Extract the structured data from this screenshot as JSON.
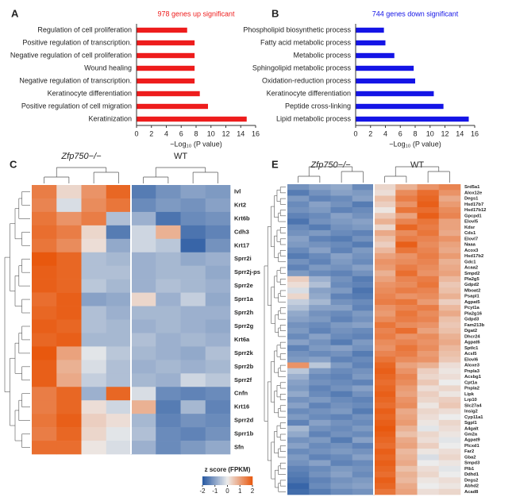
{
  "chart_data": [
    {
      "type": "bar",
      "panel": "A",
      "title": "978 genes up  significant",
      "color": "#ee1c1c",
      "categories": [
        "Regulation of cell proliferation",
        "Positive regulation of transcription.",
        "Negative regulation of cell proliferation",
        "Wound healing",
        "Negative regulation of transcription.",
        "Keratinocyte differentiation",
        "Positive regulation of cell migration",
        "Keratinization"
      ],
      "values": [
        6.8,
        7.8,
        7.8,
        7.8,
        7.8,
        8.5,
        9.6,
        14.8
      ],
      "xlabel": "−Log₁₀ (P value)",
      "xlim": [
        0,
        16
      ],
      "xticks": [
        0,
        2,
        4,
        6,
        8,
        10,
        12,
        14,
        16
      ]
    },
    {
      "type": "bar",
      "panel": "B",
      "title": "744 genes down significant",
      "color": "#1414e6",
      "categories": [
        "Phospholipid biosynthetic process",
        "Fatty acid metabolic process",
        "Metabolic process",
        "Sphingolipid metabolic process",
        "Oxidation-reduction process",
        "Keratinocyte differentiation",
        "Peptide cross-linking",
        "Lipid metabolic process"
      ],
      "values": [
        3.8,
        4.0,
        5.2,
        7.8,
        8.0,
        10.5,
        11.8,
        15.2
      ],
      "xlabel": "−Log₁₀ (P value)",
      "xlim": [
        0,
        16
      ],
      "xticks": [
        0,
        2,
        4,
        6,
        8,
        10,
        12,
        14,
        16
      ]
    },
    {
      "type": "heatmap",
      "panel": "C",
      "groups": [
        "Zfp750−/−",
        "WT"
      ],
      "rows": [
        "Ivl",
        "Krt2",
        "Krt6b",
        "Cdh3",
        "Krt17",
        "Sprr2i",
        "Sprr2j-ps",
        "Sprr2e",
        "Sprr1a",
        "Sprr2h",
        "Sprr2g",
        "Krt6a",
        "Sprr2k",
        "Sprr2b",
        "Sprr2f",
        "Cnfn",
        "Krt16",
        "Sprr2d",
        "Sprr1b",
        "Sfn"
      ],
      "values": [
        [
          1.5,
          0.3,
          1.2,
          1.8,
          -1.5,
          -1.2,
          -1.0,
          -1.1
        ],
        [
          1.4,
          -0.2,
          1.3,
          1.6,
          -1.3,
          -1.1,
          -1.2,
          -1.0
        ],
        [
          1.6,
          1.2,
          1.5,
          -0.6,
          -0.8,
          -1.6,
          -1.3,
          -1.2
        ],
        [
          1.7,
          1.5,
          0.3,
          -1.5,
          -0.3,
          0.8,
          -1.6,
          -1.4
        ],
        [
          1.6,
          1.3,
          0.2,
          -0.9,
          -0.3,
          -0.5,
          -1.8,
          -1.2
        ],
        [
          2.0,
          1.8,
          -0.6,
          -0.7,
          -0.8,
          -0.7,
          -0.9,
          -0.8
        ],
        [
          1.9,
          1.8,
          -0.6,
          -0.6,
          -0.8,
          -0.7,
          -0.7,
          -0.9
        ],
        [
          1.9,
          1.8,
          -0.5,
          -0.7,
          -0.8,
          -0.6,
          -0.7,
          -0.8
        ],
        [
          1.7,
          1.9,
          -1.0,
          -0.9,
          0.3,
          -0.8,
          -0.4,
          -0.9
        ],
        [
          1.8,
          1.9,
          -0.6,
          -0.8,
          -0.7,
          -0.7,
          -0.8,
          -0.8
        ],
        [
          1.9,
          1.8,
          -0.6,
          -0.7,
          -0.8,
          -0.7,
          -0.8,
          -0.9
        ],
        [
          1.8,
          1.9,
          -0.7,
          -0.7,
          -0.6,
          -0.8,
          -0.7,
          -0.8
        ],
        [
          2.0,
          1.0,
          -0.1,
          -0.5,
          -0.7,
          -0.8,
          -0.9,
          -0.6
        ],
        [
          1.9,
          0.8,
          -0.2,
          -0.6,
          -0.8,
          -0.7,
          -0.8,
          -0.7
        ],
        [
          1.9,
          0.9,
          -0.4,
          -0.6,
          -0.7,
          -0.8,
          -0.3,
          -0.5
        ],
        [
          1.5,
          1.8,
          -0.8,
          1.8,
          -0.2,
          -1.3,
          -1.4,
          -1.3
        ],
        [
          1.5,
          1.8,
          0.2,
          -0.3,
          0.8,
          -1.5,
          -0.7,
          -1.4
        ],
        [
          1.6,
          1.9,
          0.4,
          0.2,
          -0.7,
          -1.4,
          -1.2,
          -1.3
        ],
        [
          1.5,
          1.8,
          0.3,
          -0.1,
          -0.6,
          -1.3,
          -1.4,
          -1.2
        ],
        [
          1.7,
          1.7,
          0.1,
          -0.2,
          -0.8,
          -1.3,
          -1.1,
          -0.9
        ]
      ],
      "zlim": [
        -2,
        2
      ],
      "colorbar_label": "z score (FPKM)",
      "zticks": [
        -2,
        -1,
        0,
        1,
        2
      ]
    },
    {
      "type": "heatmap",
      "panel": "E",
      "groups": [
        "Zfp750−/−",
        "WT"
      ],
      "rows": [
        "Srd5a1",
        "Alox12e",
        "Degs1",
        "Hsd17b7",
        "Hsd17b12",
        "Gpcpd1",
        "Elovl5",
        "Kdsr",
        "Cds1",
        "Elovl7",
        "Naaa",
        "Acox3",
        "Hsd17b2",
        "Gdc1",
        "Acaa2",
        "Smpd2",
        "Pla2g5",
        "Gdpd2",
        "Mboat2",
        "Psapl1",
        "Agpat5",
        "Pcyt1a",
        "Pla2g16",
        "Gdpd3",
        "Fam213b",
        "Dgat2",
        "Dhcr24",
        "Agpat6",
        "Sptlc1",
        "Acsl5",
        "Elovl6",
        "Aloxe3",
        "Pnpla3",
        "Acsbg1",
        "Cpt1a",
        "Pnpla2",
        "Lipk",
        "Lrp10",
        "Slc27a4",
        "Insig2",
        "Cyp11a1",
        "Sgpl1",
        "A4galt",
        "Gm2a",
        "Agpat9",
        "Plcxd1",
        "Far2",
        "Gba2",
        "Smpd3",
        "Plb1",
        "Ddhd1",
        "Degs2",
        "Abhd2",
        "Acad8"
      ],
      "values": [
        [
          -1.2,
          -1.0,
          -0.9,
          -1.3,
          0.3,
          0.8,
          1.2,
          1.4
        ],
        [
          -1.5,
          -1.2,
          -1.0,
          -1.1,
          0.2,
          1.3,
          1.7,
          1.2
        ],
        [
          -1.1,
          -1.4,
          -1.3,
          -1.0,
          0.6,
          1.5,
          1.8,
          0.9
        ],
        [
          -1.3,
          -1.0,
          -1.2,
          -1.5,
          0.4,
          1.2,
          1.9,
          1.1
        ],
        [
          -1.2,
          -1.1,
          -1.4,
          -1.3,
          0.1,
          1.6,
          1.7,
          1.3
        ],
        [
          -1.4,
          -1.3,
          -1.0,
          -1.2,
          0.5,
          1.0,
          1.9,
          1.4
        ],
        [
          -1.6,
          -1.2,
          -1.1,
          -1.0,
          0.8,
          1.4,
          1.6,
          1.0
        ],
        [
          -1.3,
          -1.5,
          -1.2,
          -1.1,
          0.3,
          1.8,
          1.5,
          1.0
        ],
        [
          -1.2,
          -1.1,
          -1.3,
          -1.4,
          0.9,
          1.3,
          1.6,
          0.9
        ],
        [
          -1.0,
          -1.4,
          -1.5,
          -1.2,
          0.6,
          1.5,
          1.4,
          1.2
        ],
        [
          -1.1,
          -1.2,
          -1.3,
          -1.5,
          0.4,
          1.9,
          1.3,
          1.0
        ],
        [
          -1.3,
          -1.0,
          -1.4,
          -1.1,
          0.7,
          1.6,
          1.4,
          0.9
        ],
        [
          -1.5,
          -1.3,
          -1.0,
          -1.2,
          1.0,
          1.2,
          1.5,
          1.1
        ],
        [
          -1.2,
          -1.4,
          -1.1,
          -1.3,
          1.2,
          1.3,
          1.4,
          0.8
        ],
        [
          -1.4,
          -1.1,
          -1.2,
          -1.0,
          1.1,
          1.5,
          1.3,
          0.9
        ],
        [
          -1.1,
          -1.3,
          -1.4,
          -1.2,
          0.8,
          1.7,
          1.2,
          1.0
        ],
        [
          0.4,
          -0.8,
          -1.2,
          -1.5,
          1.0,
          1.4,
          1.5,
          0.7
        ],
        [
          0.2,
          -0.6,
          -1.3,
          -1.4,
          1.2,
          1.3,
          1.6,
          0.5
        ],
        [
          -0.2,
          -1.0,
          -1.1,
          -1.6,
          1.3,
          1.5,
          1.4,
          0.6
        ],
        [
          0.3,
          -0.9,
          -1.4,
          -1.5,
          1.4,
          1.2,
          1.3,
          0.8
        ],
        [
          -0.4,
          -0.7,
          -1.2,
          -1.3,
          1.5,
          1.6,
          1.1,
          0.4
        ],
        [
          -0.6,
          -1.0,
          -1.0,
          -1.4,
          1.2,
          1.4,
          1.5,
          0.7
        ],
        [
          -0.9,
          -1.2,
          -1.3,
          -1.1,
          1.1,
          1.6,
          1.3,
          0.9
        ],
        [
          -1.0,
          -1.1,
          -1.4,
          -1.2,
          1.3,
          1.5,
          1.4,
          0.6
        ],
        [
          -1.2,
          -1.3,
          -1.1,
          -1.0,
          1.6,
          1.3,
          1.2,
          0.5
        ],
        [
          -1.1,
          -1.4,
          -1.2,
          -1.3,
          1.4,
          1.7,
          1.0,
          0.6
        ],
        [
          -1.3,
          -1.0,
          -1.3,
          -1.4,
          1.5,
          1.2,
          1.3,
          0.8
        ],
        [
          -1.0,
          -1.2,
          -1.5,
          -1.1,
          1.3,
          1.4,
          1.2,
          0.9
        ],
        [
          -1.4,
          -1.1,
          -1.0,
          -1.2,
          1.2,
          1.6,
          1.3,
          0.7
        ],
        [
          -1.2,
          -1.3,
          -1.2,
          -1.5,
          1.4,
          1.5,
          1.1,
          0.6
        ],
        [
          -1.1,
          -1.0,
          -1.4,
          -1.3,
          1.6,
          1.3,
          1.2,
          0.5
        ],
        [
          1.2,
          -0.5,
          -1.1,
          -1.4,
          1.8,
          1.0,
          0.8,
          0.2
        ],
        [
          -0.5,
          -1.1,
          -1.3,
          -1.2,
          1.9,
          1.2,
          0.4,
          0.1
        ],
        [
          -0.8,
          -1.3,
          -1.4,
          -1.1,
          1.8,
          1.4,
          0.3,
          0.2
        ],
        [
          -1.0,
          -1.2,
          -1.3,
          -1.4,
          1.7,
          1.3,
          0.5,
          0.0
        ],
        [
          -1.1,
          -1.4,
          -1.2,
          -1.0,
          1.8,
          1.1,
          0.2,
          0.3
        ],
        [
          -0.9,
          -1.3,
          -1.5,
          -1.2,
          1.9,
          1.0,
          0.4,
          0.1
        ],
        [
          -1.2,
          -1.1,
          -1.3,
          -1.4,
          1.8,
          1.2,
          0.3,
          0.4
        ],
        [
          -1.0,
          -1.4,
          -1.2,
          -1.3,
          1.7,
          1.3,
          0.1,
          0.5
        ],
        [
          -1.3,
          -1.2,
          -1.1,
          -1.5,
          1.9,
          0.9,
          0.3,
          0.2
        ],
        [
          -1.1,
          -1.3,
          -1.4,
          -1.2,
          1.8,
          1.0,
          0.2,
          0.0
        ],
        [
          -1.4,
          -1.0,
          -1.2,
          -1.3,
          1.9,
          1.1,
          0.1,
          0.3
        ],
        [
          -0.7,
          -1.2,
          -1.3,
          -1.1,
          2.0,
          0.8,
          -0.1,
          0.2
        ],
        [
          -0.9,
          -1.4,
          -1.2,
          -1.3,
          1.9,
          0.6,
          0.3,
          0.1
        ],
        [
          -1.2,
          -1.1,
          -1.5,
          -1.0,
          1.8,
          0.9,
          0.2,
          -0.1
        ],
        [
          -1.0,
          -1.3,
          -1.2,
          -1.4,
          1.7,
          1.0,
          0.4,
          0.0
        ],
        [
          -1.3,
          -1.2,
          -1.1,
          -1.2,
          1.9,
          0.7,
          0.1,
          0.2
        ],
        [
          -1.1,
          -1.4,
          -1.3,
          -1.0,
          1.8,
          0.8,
          -0.2,
          0.3
        ],
        [
          -1.2,
          -1.0,
          -1.4,
          -1.3,
          1.9,
          0.9,
          0.0,
          0.1
        ],
        [
          -1.4,
          -1.3,
          -1.1,
          -1.2,
          1.8,
          0.6,
          0.2,
          -0.1
        ],
        [
          -1.5,
          -1.2,
          -1.0,
          -1.3,
          1.7,
          0.8,
          0.3,
          0.0
        ],
        [
          -1.6,
          -1.4,
          -1.2,
          -1.1,
          1.9,
          0.7,
          0.1,
          0.2
        ],
        [
          -1.8,
          -1.3,
          -1.1,
          -1.0,
          1.8,
          0.9,
          0.0,
          0.1
        ],
        [
          -1.7,
          -1.5,
          -1.3,
          -1.2,
          1.6,
          1.0,
          0.2,
          0.3
        ]
      ],
      "zlim": [
        -2,
        2
      ]
    }
  ]
}
